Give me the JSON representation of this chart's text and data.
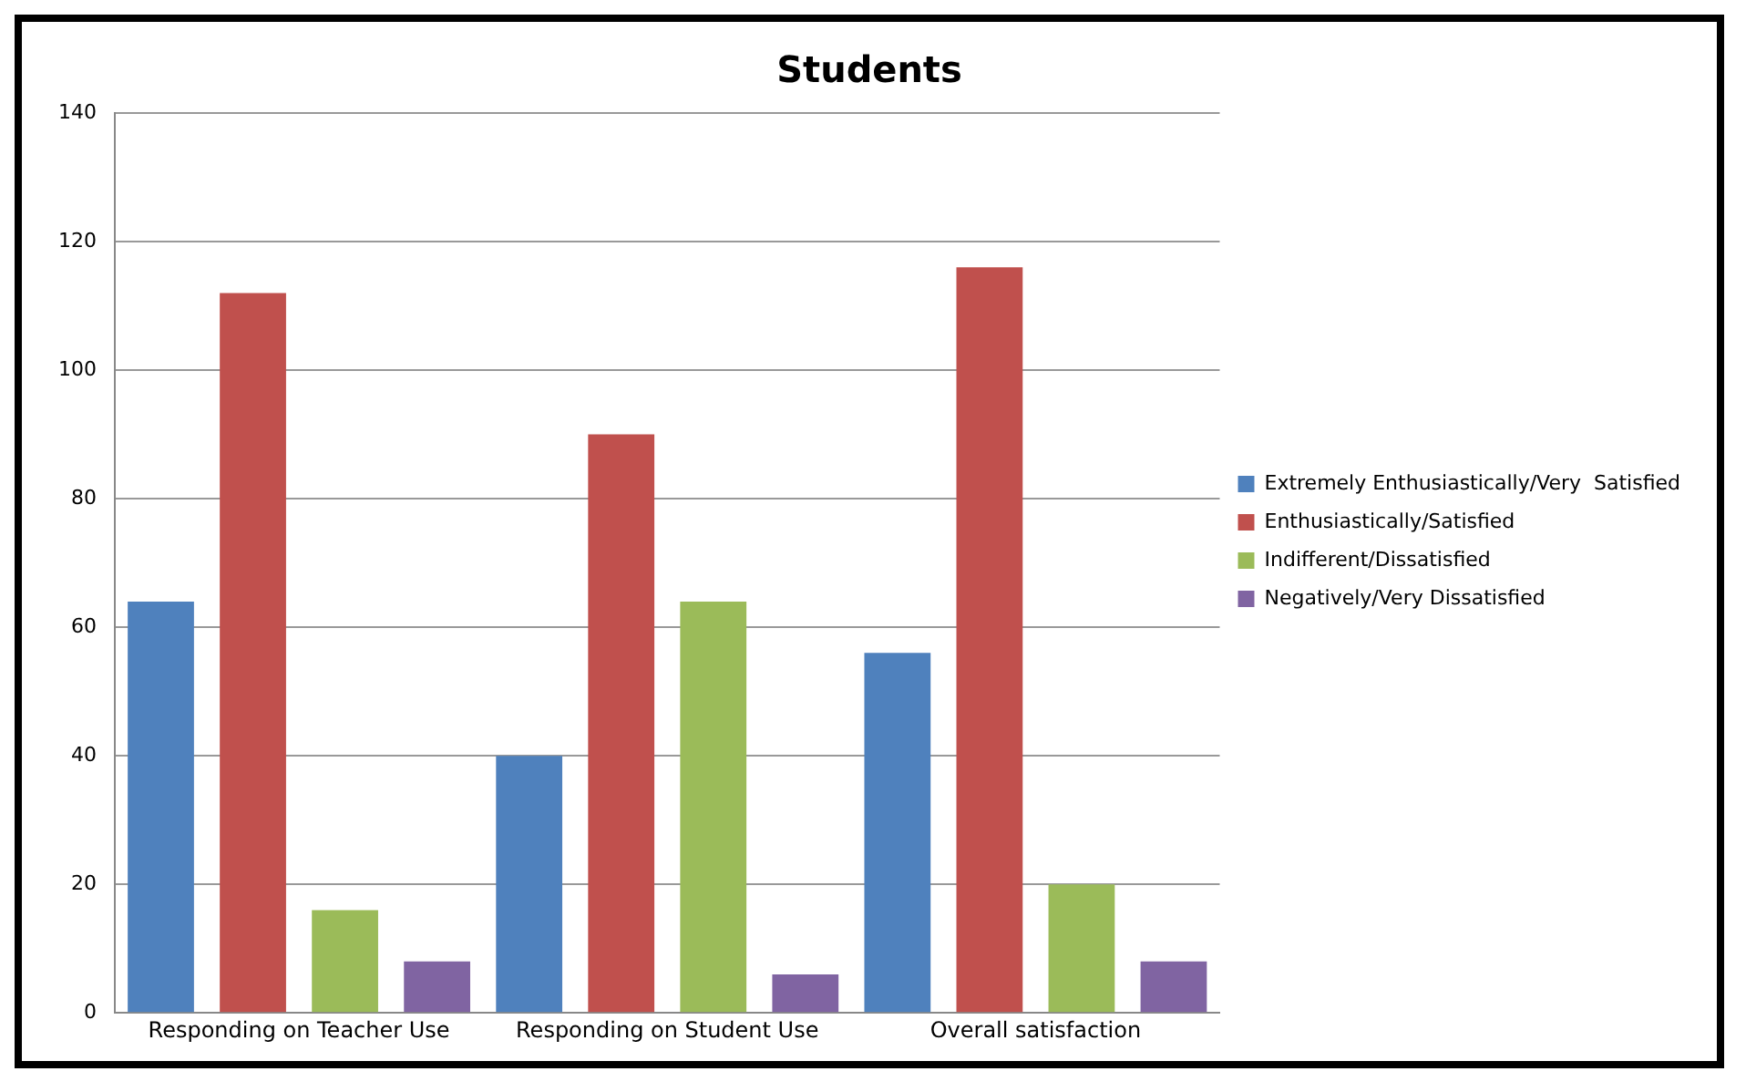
{
  "chart_data": {
    "type": "bar",
    "title": "Students",
    "categories": [
      "Responding on Teacher Use",
      "Responding on Student Use",
      "Overall satisfaction"
    ],
    "series": [
      {
        "name": "Extremely Enthusiastically/Very  Satisfied",
        "color": "#4f81bd",
        "values": [
          64,
          40,
          56
        ]
      },
      {
        "name": "Enthusiastically/Satisfied",
        "color": "#c0504d",
        "values": [
          112,
          90,
          116
        ]
      },
      {
        "name": "Indifferent/Dissatisfied",
        "color": "#9bbb59",
        "values": [
          16,
          64,
          20
        ]
      },
      {
        "name": "Negatively/Very Dissatisfied",
        "color": "#8064a2",
        "values": [
          8,
          6,
          8
        ]
      }
    ],
    "ylim": [
      0,
      140
    ],
    "yticks": [
      0,
      20,
      40,
      60,
      80,
      100,
      120,
      140
    ],
    "grid": "y",
    "legend": "right"
  }
}
